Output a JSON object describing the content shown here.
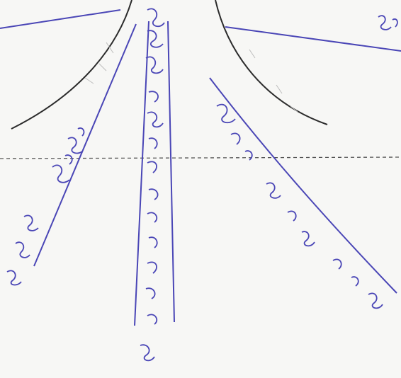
{
  "colors": {
    "paper": "#f7f7f5",
    "ink": "#4a46b6",
    "pencil": "#2b2b2b",
    "dash": "#555555"
  },
  "labels": {
    "top_right": "",
    "branch_left_1": "",
    "branch_left_2": "",
    "branch_center_1": "",
    "branch_center_2": "",
    "branch_right": ""
  }
}
